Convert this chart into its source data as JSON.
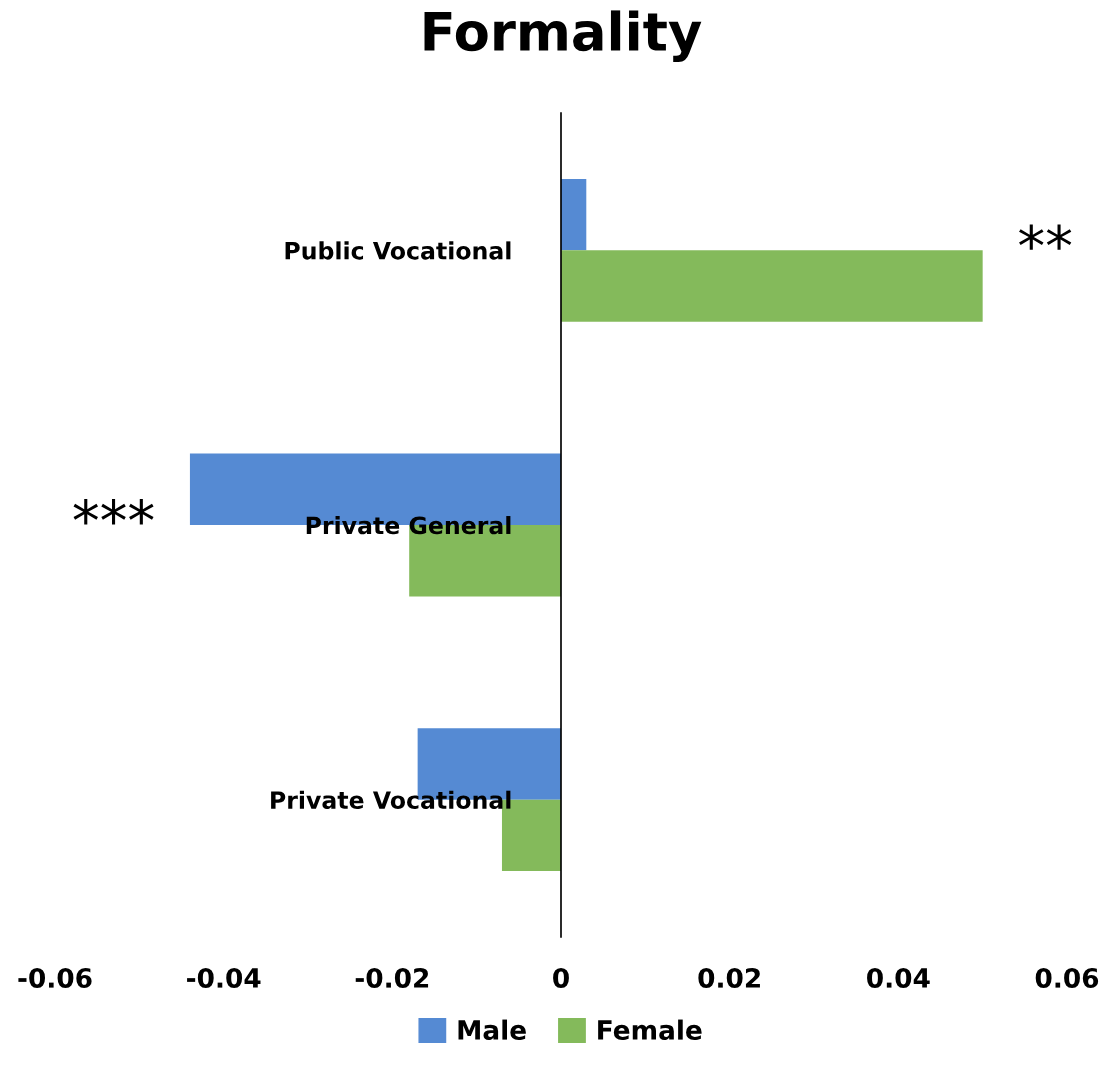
{
  "chart_data": {
    "type": "bar",
    "orientation": "horizontal",
    "title": "Formality",
    "categories": [
      "Public Vocational",
      "Private General",
      "Private Vocational"
    ],
    "series": [
      {
        "name": "Male",
        "color": "#558ad3",
        "values": [
          0.003,
          -0.044,
          -0.017
        ]
      },
      {
        "name": "Female",
        "color": "#84ba5b",
        "values": [
          0.05,
          -0.018,
          -0.007
        ]
      }
    ],
    "xlim": [
      -0.06,
      0.06
    ],
    "xticks": [
      -0.06,
      -0.04,
      -0.02,
      0,
      0.02,
      0.04,
      0.06
    ],
    "annotations": [
      {
        "text": "**",
        "x": 0.05,
        "y": "Public Vocational"
      },
      {
        "text": "***",
        "x": -0.044,
        "y": "Private General"
      }
    ],
    "grid": false,
    "legend": "bottom"
  }
}
